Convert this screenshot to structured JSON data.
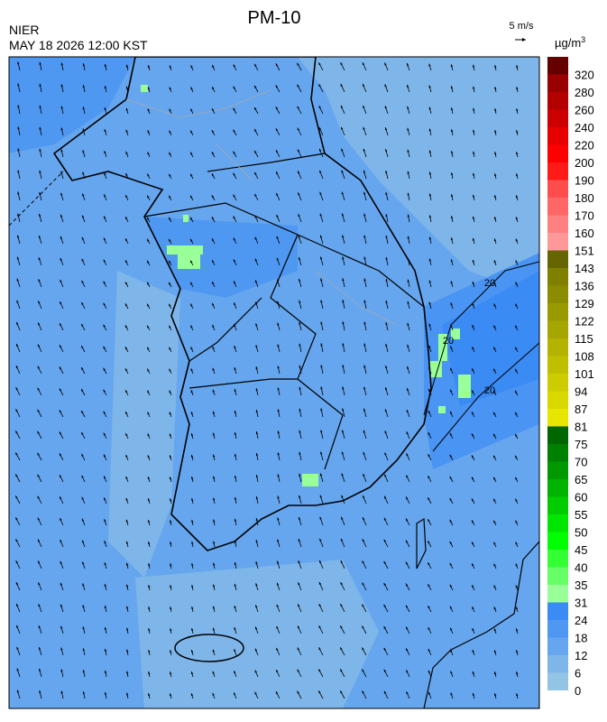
{
  "header": {
    "title": "PM-10",
    "agency": "NIER",
    "timestamp": "MAY 18 2026 12:00 KST",
    "wind_scale": "5 m/s",
    "unit": "µg/m",
    "unit_sup": "3"
  },
  "contour_labels": [
    "20",
    "20",
    "20"
  ],
  "legend": {
    "labels": [
      0,
      6,
      12,
      18,
      24,
      31,
      35,
      40,
      45,
      50,
      55,
      60,
      65,
      70,
      75,
      81,
      87,
      94,
      101,
      108,
      115,
      122,
      129,
      136,
      143,
      151,
      160,
      170,
      180,
      190,
      200,
      220,
      240,
      260,
      280,
      320
    ],
    "colors": [
      "#93c4e6",
      "#7fb6ea",
      "#66a6ee",
      "#4f98f2",
      "#3b8bf5",
      "#99ff99",
      "#66ff66",
      "#33ff33",
      "#00ff00",
      "#00e600",
      "#00cc00",
      "#00b300",
      "#009900",
      "#008000",
      "#006600",
      "#e6e600",
      "#d9d900",
      "#cccc00",
      "#bfbf00",
      "#b3b300",
      "#a6a600",
      "#999900",
      "#8c8c00",
      "#808000",
      "#666600",
      "#ff9999",
      "#ff8080",
      "#ff6666",
      "#ff4d4d",
      "#ff1a1a",
      "#ff0000",
      "#e60000",
      "#cc0000",
      "#b30000",
      "#990000",
      "#660000"
    ]
  }
}
